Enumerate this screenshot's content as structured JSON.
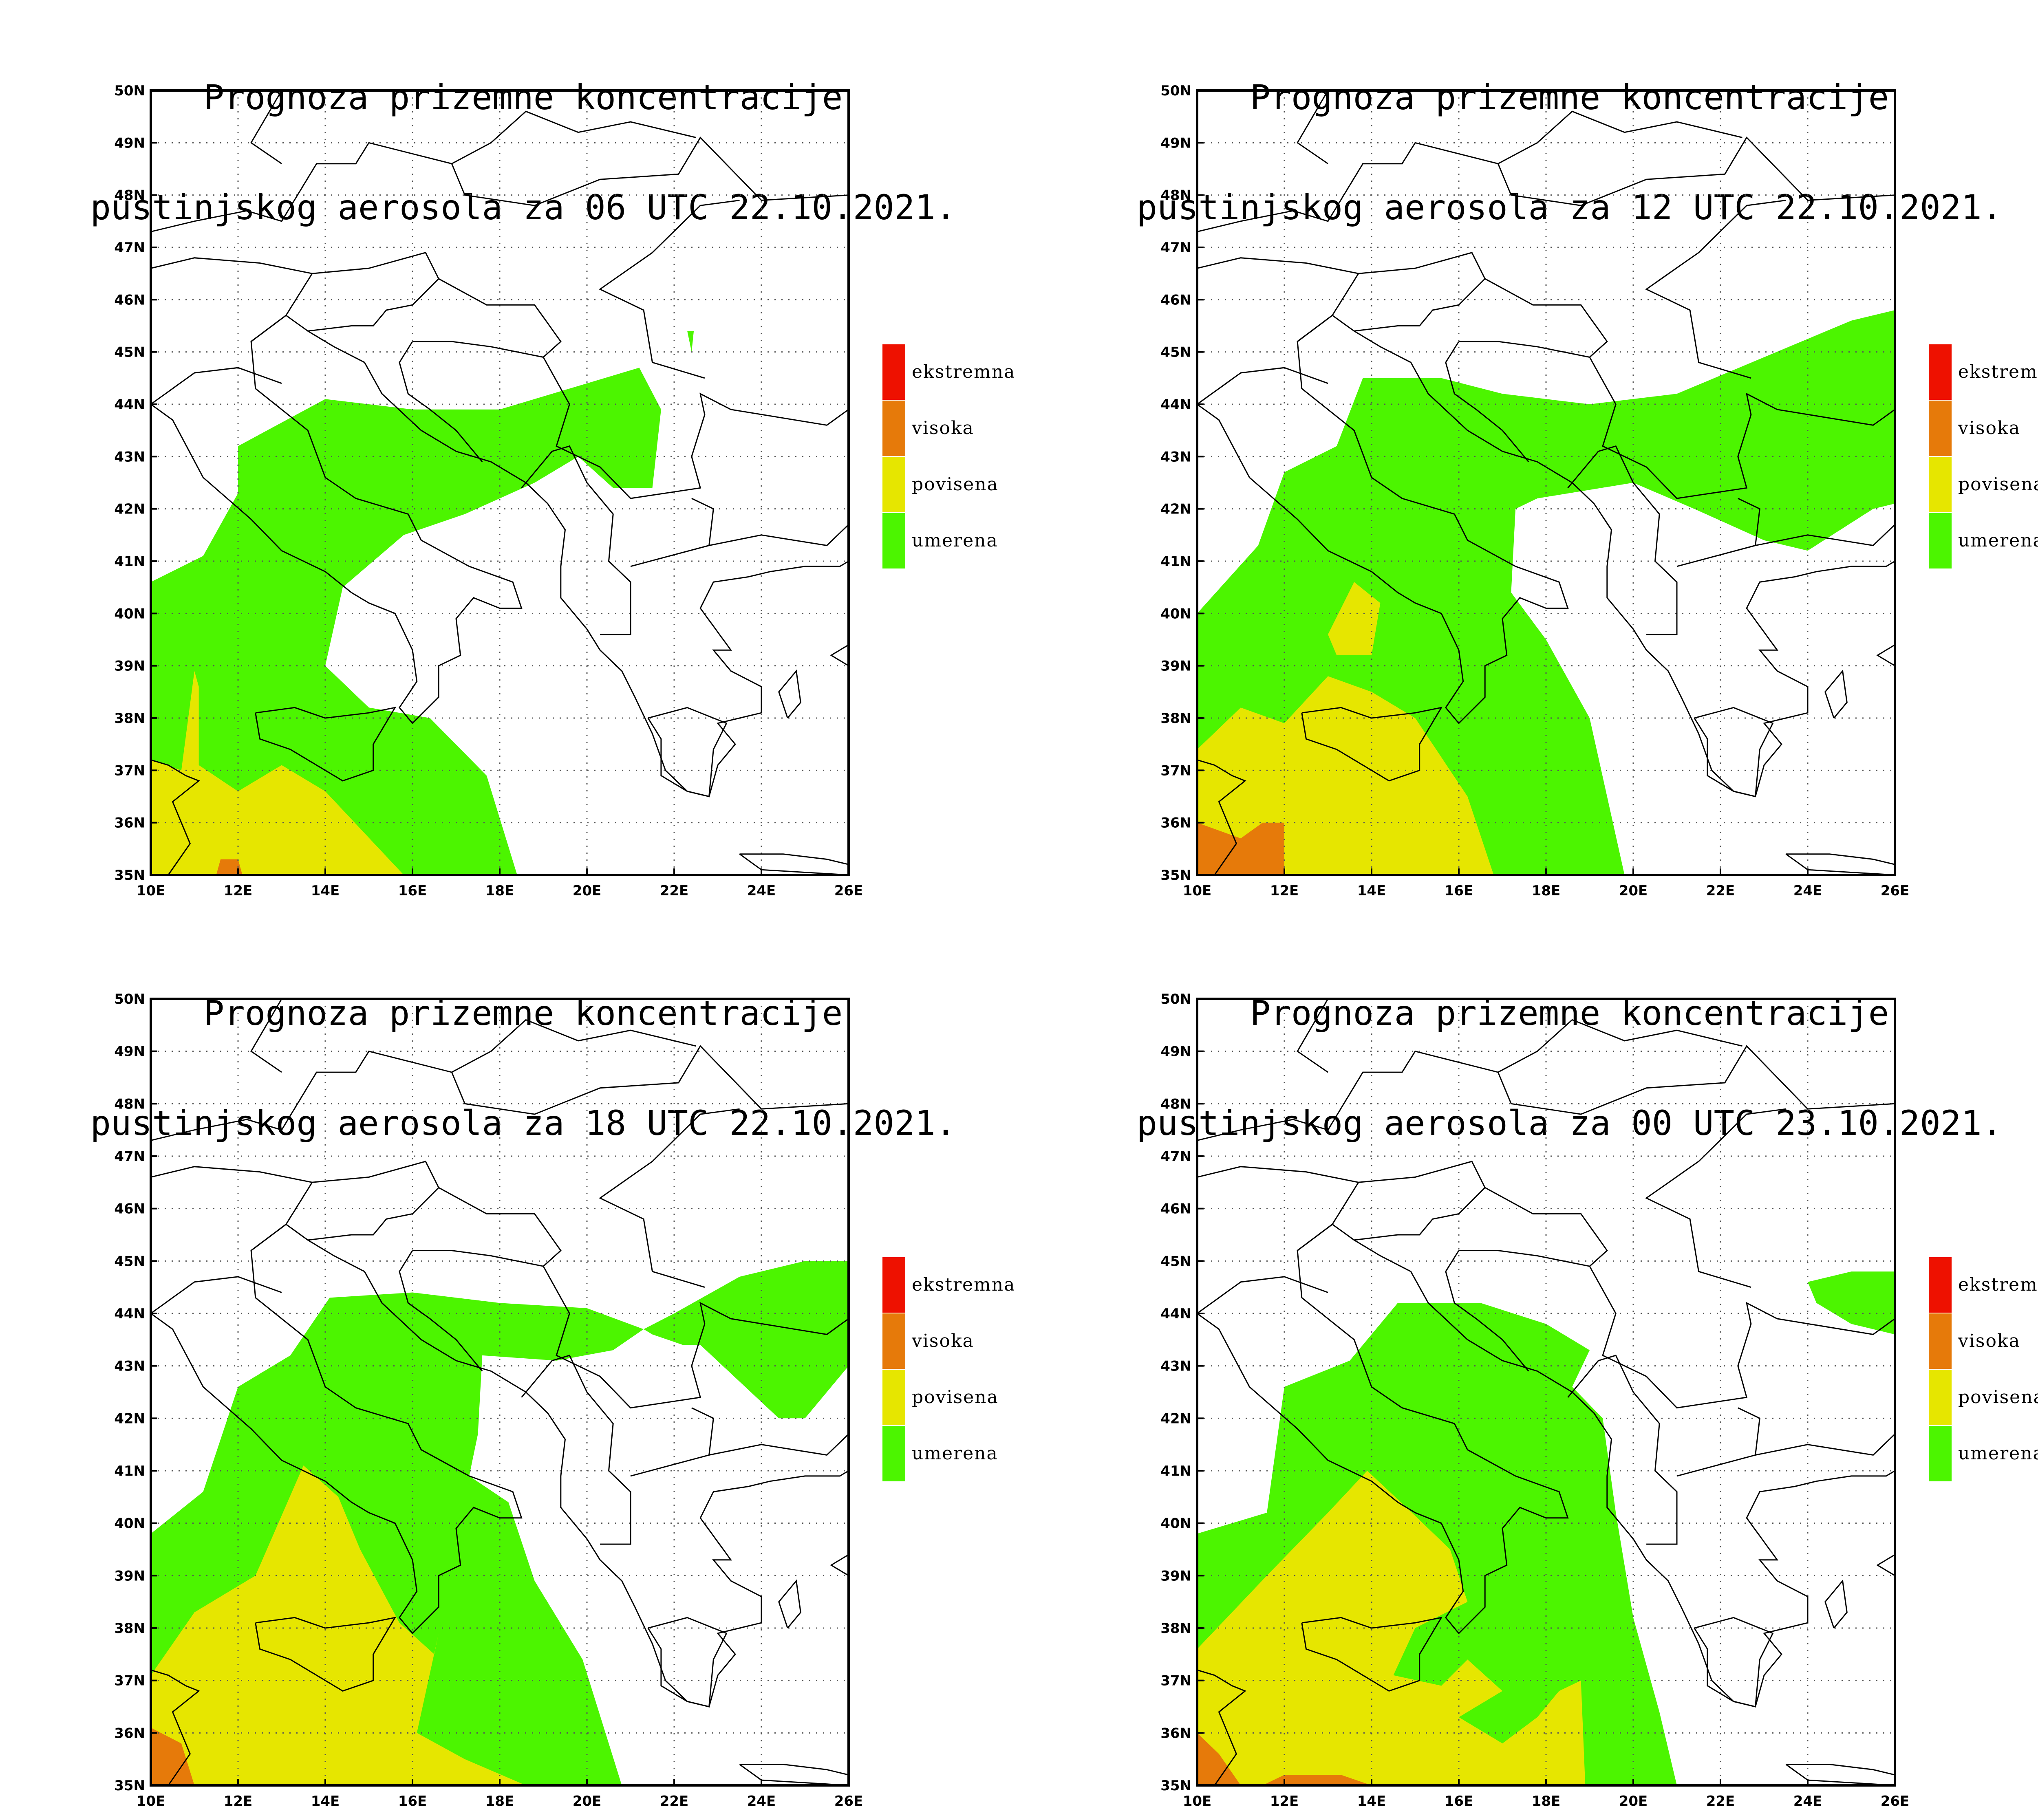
{
  "colors": {
    "ekstremna": "#ee1100",
    "visoka": "#e67a0a",
    "povisena": "#e6e600",
    "umerena": "#4cf500",
    "border": "#000000",
    "grid": "#555555"
  },
  "legend": [
    {
      "label": "ekstremna",
      "color": "#ee1100"
    },
    {
      "label": "visoka",
      "color": "#e67a0a"
    },
    {
      "label": "povisena",
      "color": "#e6e600"
    },
    {
      "label": "umerena",
      "color": "#4cf500"
    }
  ],
  "axes": {
    "x_ticks": [
      "10E",
      "12E",
      "14E",
      "16E",
      "18E",
      "20E",
      "22E",
      "24E",
      "26E"
    ],
    "y_ticks": [
      "35N",
      "36N",
      "37N",
      "38N",
      "39N",
      "40N",
      "41N",
      "42N",
      "43N",
      "44N",
      "45N",
      "46N",
      "47N",
      "48N",
      "49N",
      "50N"
    ]
  },
  "panels": [
    {
      "title1": "Prognoza prizemne koncentracije",
      "title2": "pustinjskog aerosola za 06 UTC 22.10.2021."
    },
    {
      "title1": "Prognoza prizemne koncentracije",
      "title2": "pustinjskog aerosola za 12 UTC 22.10.2021."
    },
    {
      "title1": "Prognoza prizemne koncentracije",
      "title2": "pustinjskog aerosola za 18 UTC 22.10.2021."
    },
    {
      "title1": "Prognoza prizemne koncentracije",
      "title2": "pustinjskog aerosola za 00 UTC 23.10.2021."
    }
  ],
  "fields": [
    {
      "green": [
        [
          [
            10,
            40.6
          ],
          [
            11.2,
            41.1
          ],
          [
            12,
            42.3
          ],
          [
            12,
            43.2
          ],
          [
            14,
            44.1
          ],
          [
            16,
            43.9
          ],
          [
            18,
            43.9
          ],
          [
            20,
            44.4
          ],
          [
            21.2,
            44.7
          ],
          [
            21.7,
            43.9
          ],
          [
            21.5,
            42.4
          ],
          [
            20.6,
            42.4
          ],
          [
            19.8,
            43.0
          ],
          [
            18.8,
            42.5
          ],
          [
            17.2,
            41.9
          ],
          [
            15.8,
            41.5
          ],
          [
            14.4,
            40.5
          ],
          [
            14.0,
            39.0
          ],
          [
            15.0,
            38.2
          ],
          [
            16.4,
            38.0
          ],
          [
            17.7,
            36.9
          ],
          [
            18.4,
            35.0
          ],
          [
            10,
            35.0
          ]
        ],
        [
          [
            22.3,
            45.4
          ],
          [
            22.45,
            45.4
          ],
          [
            22.4,
            45.0
          ]
        ]
      ],
      "yellow": [
        [
          [
            10,
            37.2
          ],
          [
            10.7,
            37.0
          ],
          [
            11.0,
            38.9
          ],
          [
            11.1,
            38.6
          ],
          [
            11.1,
            37.1
          ],
          [
            12.0,
            36.6
          ],
          [
            13.0,
            37.1
          ],
          [
            14.0,
            36.6
          ],
          [
            15.8,
            35.0
          ],
          [
            10,
            35.0
          ]
        ]
      ],
      "orange": [
        [
          [
            11.5,
            35.0
          ],
          [
            11.6,
            35.3
          ],
          [
            12.0,
            35.3
          ],
          [
            12.1,
            35.0
          ]
        ]
      ],
      "red": []
    },
    {
      "green": [
        [
          [
            10,
            40.0
          ],
          [
            11.4,
            41.3
          ],
          [
            12,
            42.7
          ],
          [
            13.2,
            43.2
          ],
          [
            13.8,
            44.5
          ],
          [
            15.6,
            44.5
          ],
          [
            17.0,
            44.2
          ],
          [
            19.0,
            44.0
          ],
          [
            21.0,
            44.2
          ],
          [
            23.0,
            44.9
          ],
          [
            25.0,
            45.6
          ],
          [
            26,
            45.8
          ],
          [
            26,
            42.1
          ],
          [
            25.5,
            42.0
          ],
          [
            24.0,
            41.2
          ],
          [
            23.0,
            41.4
          ],
          [
            21.4,
            42.0
          ],
          [
            20.0,
            42.5
          ],
          [
            17.8,
            42.2
          ],
          [
            17.3,
            42.0
          ],
          [
            17.2,
            40.4
          ],
          [
            18.0,
            39.5
          ],
          [
            19.0,
            38.0
          ],
          [
            19.8,
            35.0
          ],
          [
            10,
            35.0
          ]
        ]
      ],
      "yellow": [
        [
          [
            10,
            37.4
          ],
          [
            11.0,
            38.2
          ],
          [
            12,
            37.9
          ],
          [
            13.0,
            38.8
          ],
          [
            14.0,
            38.5
          ],
          [
            15.0,
            38.0
          ],
          [
            16.2,
            36.5
          ],
          [
            16.8,
            35.0
          ],
          [
            10,
            35.0
          ]
        ],
        [
          [
            13.0,
            39.6
          ],
          [
            13.6,
            40.6
          ],
          [
            14.2,
            40.2
          ],
          [
            14.0,
            39.2
          ],
          [
            13.2,
            39.2
          ]
        ]
      ],
      "orange": [
        [
          [
            10,
            36.0
          ],
          [
            11.0,
            35.7
          ],
          [
            11.5,
            36.0
          ],
          [
            12.0,
            36.0
          ],
          [
            12.0,
            35.0
          ],
          [
            10,
            35.0
          ]
        ]
      ],
      "red": []
    },
    {
      "green": [
        [
          [
            10,
            39.8
          ],
          [
            11.2,
            40.6
          ],
          [
            12,
            42.6
          ],
          [
            13.2,
            43.2
          ],
          [
            14.1,
            44.3
          ],
          [
            16,
            44.4
          ],
          [
            18,
            44.2
          ],
          [
            20,
            44.1
          ],
          [
            21.3,
            43.7
          ],
          [
            20.6,
            43.3
          ],
          [
            19.3,
            43.1
          ],
          [
            17.6,
            43.2
          ],
          [
            17.5,
            41.7
          ],
          [
            17.3,
            40.9
          ],
          [
            18.2,
            40.4
          ],
          [
            18.8,
            38.9
          ],
          [
            19.9,
            37.4
          ],
          [
            20.5,
            35.8
          ],
          [
            20.8,
            35.0
          ],
          [
            10,
            35.0
          ]
        ],
        [
          [
            21.3,
            43.7
          ],
          [
            22.0,
            44.0
          ],
          [
            23.5,
            44.7
          ],
          [
            25.0,
            45.0
          ],
          [
            26,
            45.0
          ],
          [
            26,
            43.0
          ],
          [
            25.0,
            42.0
          ],
          [
            24.4,
            42.0
          ],
          [
            23.5,
            42.7
          ],
          [
            22.6,
            43.4
          ],
          [
            22.2,
            43.4
          ],
          [
            21.5,
            43.6
          ]
        ]
      ],
      "yellow": [
        [
          [
            10,
            37.1
          ],
          [
            11.0,
            38.3
          ],
          [
            12.4,
            39.0
          ],
          [
            13.5,
            41.1
          ],
          [
            14.3,
            40.5
          ],
          [
            14.8,
            39.5
          ],
          [
            15.7,
            38.1
          ],
          [
            16.5,
            37.5
          ],
          [
            16.6,
            37.9
          ],
          [
            16.1,
            36.0
          ],
          [
            17.2,
            35.5
          ],
          [
            18.6,
            35.0
          ],
          [
            10,
            35.0
          ]
        ]
      ],
      "orange": [
        [
          [
            10,
            36.1
          ],
          [
            10.7,
            35.8
          ],
          [
            11.0,
            35.0
          ],
          [
            10,
            35.0
          ]
        ]
      ],
      "red": []
    },
    {
      "green": [
        [
          [
            10,
            39.8
          ],
          [
            11.6,
            40.2
          ],
          [
            12,
            42.6
          ],
          [
            13.5,
            43.1
          ],
          [
            14.6,
            44.2
          ],
          [
            16.5,
            44.2
          ],
          [
            18.0,
            43.8
          ],
          [
            19.0,
            43.3
          ],
          [
            18.6,
            42.6
          ],
          [
            19.3,
            42.0
          ],
          [
            19.6,
            40.2
          ],
          [
            20.0,
            38.2
          ],
          [
            20.6,
            36.4
          ],
          [
            21.0,
            35.0
          ],
          [
            10,
            35.0
          ]
        ],
        [
          [
            24.0,
            44.6
          ],
          [
            25.0,
            44.8
          ],
          [
            26,
            44.8
          ],
          [
            26,
            43.6
          ],
          [
            25.0,
            43.8
          ],
          [
            24.2,
            44.2
          ]
        ]
      ],
      "yellow": [
        [
          [
            10,
            37.6
          ],
          [
            11.6,
            39.0
          ],
          [
            13.0,
            40.2
          ],
          [
            13.9,
            41.0
          ],
          [
            14.8,
            40.3
          ],
          [
            15.8,
            39.5
          ],
          [
            16.2,
            38.5
          ],
          [
            15.0,
            38.0
          ],
          [
            14.5,
            37.1
          ],
          [
            15.6,
            36.9
          ],
          [
            16.2,
            37.4
          ],
          [
            17.0,
            36.8
          ],
          [
            16.0,
            36.3
          ],
          [
            17.0,
            35.8
          ],
          [
            17.8,
            36.3
          ],
          [
            18.3,
            36.8
          ],
          [
            18.8,
            37.0
          ],
          [
            18.9,
            35.0
          ],
          [
            10,
            35.0
          ]
        ]
      ],
      "orange": [
        [
          [
            10,
            36.0
          ],
          [
            10.5,
            35.6
          ],
          [
            11.0,
            35.0
          ],
          [
            10,
            35.0
          ]
        ],
        [
          [
            11.5,
            35.0
          ],
          [
            12.0,
            35.2
          ],
          [
            13.3,
            35.2
          ],
          [
            14.0,
            35.0
          ]
        ]
      ],
      "red": []
    }
  ]
}
